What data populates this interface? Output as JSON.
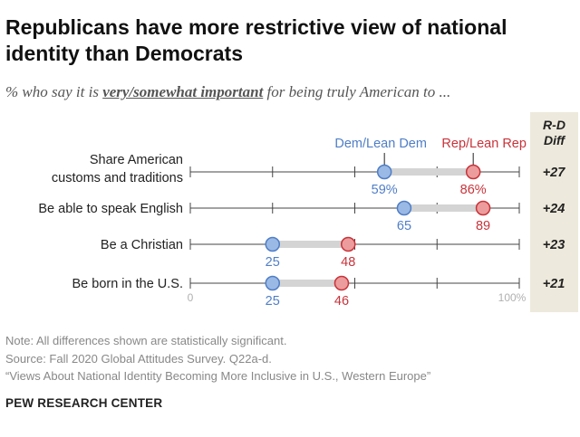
{
  "title": "Republicans have more restrictive view of national identity than Democrats",
  "subtitle": {
    "prefix": "% who say it is ",
    "emphasis": "very/somewhat important",
    "suffix": " for being truly American to ..."
  },
  "diff_header_line1": "R-D",
  "diff_header_line2": "Diff",
  "chart_data": {
    "type": "dot",
    "xlim": [
      0,
      100
    ],
    "axis_labels": [
      "0",
      "100%"
    ],
    "categories": [
      "Share American customs and traditions",
      "Be able to speak English",
      "Be a Christian",
      "Be born in the U.S."
    ],
    "category_lines": [
      [
        "Share American",
        "customs and traditions"
      ],
      [
        "Be able to speak English"
      ],
      [
        "Be a Christian"
      ],
      [
        "Be born in the U.S."
      ]
    ],
    "series": [
      {
        "name": "Dem/Lean Dem",
        "color": "#4f7ec7",
        "fill": "#9ab9e4",
        "values": [
          59,
          65,
          25,
          25
        ],
        "value_labels": [
          "59%",
          "65",
          "25",
          "25"
        ]
      },
      {
        "name": "Rep/Lean Rep",
        "color": "#c8333a",
        "fill": "#ec9c9c",
        "values": [
          86,
          89,
          48,
          46
        ],
        "value_labels": [
          "86%",
          "89",
          "48",
          "46"
        ]
      }
    ],
    "diff": [
      "+27",
      "+24",
      "+23",
      "+21"
    ]
  },
  "colors": {
    "connector": "#d4d4d4",
    "axis_line": "#444444",
    "panel": "#ede9dc"
  },
  "notes": [
    "Note: All differences shown are statistically significant.",
    "Source: Fall 2020 Global Attitudes Survey. Q22a-d.",
    "“Views About National Identity Becoming More Inclusive in U.S., Western Europe”"
  ],
  "brand": "PEW RESEARCH CENTER"
}
